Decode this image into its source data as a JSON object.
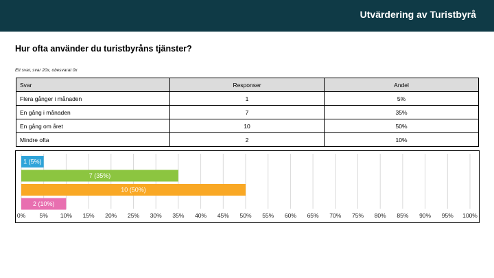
{
  "header": {
    "title": "Utvärdering av Turistbyrå"
  },
  "question": "Hur ofta använder du turistbyråns tjänster?",
  "meta": "Ett svar, svar 20x, obesvarat 0x",
  "table": {
    "headers": [
      "Svar",
      "Responser",
      "Andel"
    ],
    "rows": [
      {
        "label": "Flera gånger i månaden",
        "count": "1",
        "share": "5%"
      },
      {
        "label": "En gång i månaden",
        "count": "7",
        "share": "35%"
      },
      {
        "label": "En gång om året",
        "count": "10",
        "share": "50%"
      },
      {
        "label": "Mindre ofta",
        "count": "2",
        "share": "10%"
      }
    ]
  },
  "chart_data": {
    "type": "bar",
    "orientation": "horizontal",
    "categories": [
      "Flera gånger i månaden",
      "En gång i månaden",
      "En gång om året",
      "Mindre ofta"
    ],
    "values": [
      5,
      35,
      50,
      10
    ],
    "labels": [
      "1 (5%)",
      "7 (35%)",
      "10 (50%)",
      "2 (10%)"
    ],
    "colors": [
      "#2fa4d9",
      "#8cc540",
      "#f9a825",
      "#e86fb0"
    ],
    "xlim": [
      0,
      100
    ],
    "xticks": [
      "0%",
      "5%",
      "10%",
      "15%",
      "20%",
      "25%",
      "30%",
      "35%",
      "40%",
      "45%",
      "50%",
      "55%",
      "60%",
      "65%",
      "70%",
      "75%",
      "80%",
      "85%",
      "90%",
      "95%",
      "100%"
    ],
    "grid": true
  }
}
